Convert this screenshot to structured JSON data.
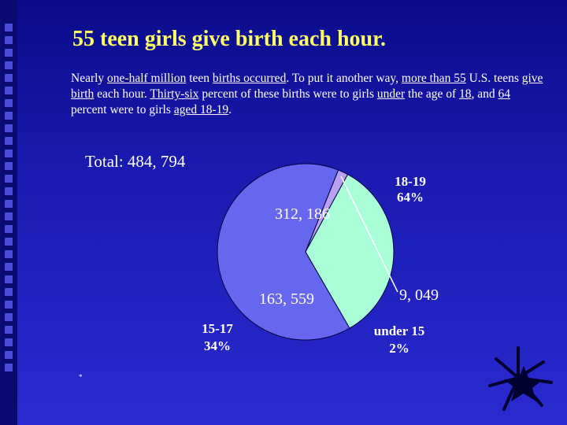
{
  "slide": {
    "title": "55 teen girls give birth each hour.",
    "paragraph": {
      "p1": "Nearly ",
      "u1": "one-half million",
      "p2": " teen ",
      "u2": "births occurred",
      "p3": ". To put it another way, ",
      "u3": "more than 55",
      "p4": " U.S. teens ",
      "u4": "give birth",
      "p5": " each hour. ",
      "u5": "Thirty-six",
      "p6": " percent of these births were to girls ",
      "u6": "under",
      "p7": " the age of ",
      "u7": "18",
      "p8": ", and ",
      "u8": "64",
      "p9": " percent were to girls ",
      "u9": "aged 18-19",
      "p10": "."
    },
    "total_label": "Total: 484, 794",
    "footnote": "*"
  },
  "chart_data": {
    "type": "pie",
    "slices": [
      {
        "label": "18-19",
        "percent_label": "64%",
        "value_label": "312, 186",
        "value": 312186,
        "color": "#6666ee"
      },
      {
        "label": "under 15",
        "percent_label": "2%",
        "value_label": "9, 049",
        "value": 9049,
        "color": "#b9a0f0"
      },
      {
        "label": "15-17",
        "percent_label": "34%",
        "value_label": "163, 559",
        "value": 163559,
        "color": "#a8ffd8"
      }
    ]
  },
  "colors": {
    "title": "#ffff66",
    "background": "#1a1ab0",
    "label_bold": "#ffffff"
  }
}
